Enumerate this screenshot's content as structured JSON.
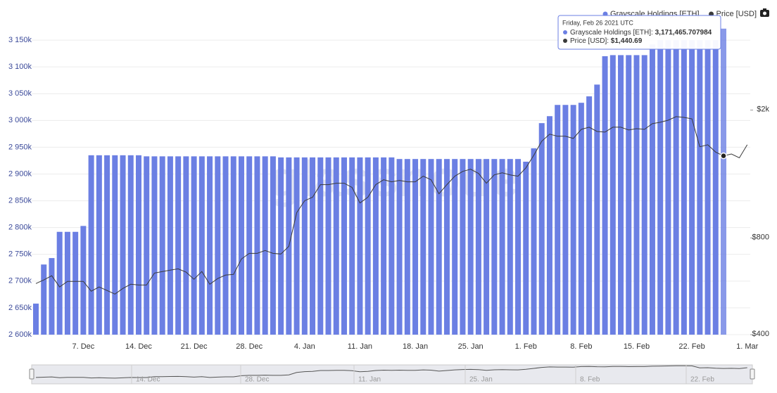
{
  "chart_data": {
    "type": "bar",
    "watermark": "glassnode",
    "categories": [
      null,
      null,
      null,
      null,
      null,
      null,
      "7. Dec",
      null,
      null,
      null,
      null,
      null,
      null,
      "14. Dec",
      null,
      null,
      null,
      null,
      null,
      null,
      "21. Dec",
      null,
      null,
      null,
      null,
      null,
      null,
      "28. Dec",
      null,
      null,
      null,
      null,
      null,
      null,
      "4. Jan",
      null,
      null,
      null,
      null,
      null,
      null,
      "11. Jan",
      null,
      null,
      null,
      null,
      null,
      null,
      "18. Jan",
      null,
      null,
      null,
      null,
      null,
      null,
      "25. Jan",
      null,
      null,
      null,
      null,
      null,
      null,
      "1. Feb",
      null,
      null,
      null,
      null,
      null,
      null,
      "8. Feb",
      null,
      null,
      null,
      null,
      null,
      null,
      "15. Feb",
      null,
      null,
      null,
      null,
      null,
      null,
      "22. Feb",
      null,
      null,
      null,
      null,
      null,
      null,
      "1. Mar"
    ],
    "series": [
      {
        "name": "Grayscale Holdings [ETH]",
        "type": "bar",
        "color": "#6b7fe3",
        "values": [
          2658000,
          2731000,
          2743000,
          2792000,
          2792000,
          2792000,
          2803000,
          2935000,
          2935000,
          2935000,
          2935000,
          2935000,
          2935000,
          2935000,
          2933000,
          2933000,
          2933000,
          2933000,
          2933000,
          2933000,
          2933000,
          2933000,
          2933000,
          2933000,
          2933000,
          2933000,
          2933000,
          2933000,
          2933000,
          2933000,
          2933000,
          2931000,
          2931000,
          2931000,
          2931000,
          2931000,
          2931000,
          2931000,
          2931000,
          2931000,
          2931000,
          2931000,
          2931000,
          2931000,
          2931000,
          2931000,
          2928000,
          2928000,
          2928000,
          2928000,
          2928000,
          2928000,
          2928000,
          2928000,
          2928000,
          2928000,
          2928000,
          2928000,
          2928000,
          2928000,
          2928000,
          2928000,
          2923000,
          2948000,
          2995000,
          3008000,
          3029000,
          3029000,
          3029000,
          3033000,
          3045000,
          3067000,
          3120000,
          3122000,
          3122000,
          3122000,
          3122000,
          3122000,
          3142000,
          3150000,
          3150000,
          3150000,
          3150000,
          3150000,
          3150000,
          3150000,
          3150000,
          3171465.707984,
          null,
          null,
          null
        ]
      },
      {
        "name": "Price [USD]",
        "type": "line",
        "axis": "y2",
        "color": "#3a3a3a",
        "values": [
          577,
          592,
          610,
          563,
          586,
          586,
          586,
          546,
          563,
          549,
          535,
          557,
          574,
          571,
          571,
          622,
          629,
          635,
          641,
          626,
          595,
          629,
          574,
          598,
          613,
          616,
          688,
          716,
          716,
          731,
          716,
          713,
          753,
          959,
          1044,
          1071,
          1172,
          1172,
          1184,
          1184,
          1149,
          1028,
          1071,
          1172,
          1214,
          1196,
          1208,
          1196,
          1196,
          1245,
          1214,
          1098,
          1172,
          1245,
          1289,
          1309,
          1270,
          1184,
          1257,
          1276,
          1257,
          1245,
          1322,
          1447,
          1600,
          1683,
          1658,
          1658,
          1632,
          1742,
          1769,
          1716,
          1708,
          1769,
          1769,
          1734,
          1751,
          1742,
          1814,
          1833,
          1860,
          1908,
          1898,
          1879,
          1537,
          1560,
          1480,
          1440.69,
          1460,
          1420,
          1560
        ]
      }
    ],
    "ylim": [
      2600000,
      3200000
    ],
    "yticks": [
      {
        "value": 2600000,
        "label": "2 600k"
      },
      {
        "value": 2650000,
        "label": "2 650k"
      },
      {
        "value": 2700000,
        "label": "2 700k"
      },
      {
        "value": 2750000,
        "label": "2 750k"
      },
      {
        "value": 2800000,
        "label": "2 800k"
      },
      {
        "value": 2850000,
        "label": "2 850k"
      },
      {
        "value": 2900000,
        "label": "2 900k"
      },
      {
        "value": 2950000,
        "label": "2 950k"
      },
      {
        "value": 3000000,
        "label": "3 000k"
      },
      {
        "value": 3050000,
        "label": "3 050k"
      },
      {
        "value": 3100000,
        "label": "3 100k"
      },
      {
        "value": 3150000,
        "label": "3 150k"
      }
    ],
    "y2lim": [
      400,
      4000
    ],
    "y2log": true,
    "y2ticks": [
      {
        "value": 400,
        "label": "$400"
      },
      {
        "value": 800,
        "label": "$800"
      },
      {
        "value": 2000,
        "label": "$2k"
      }
    ],
    "grid": true,
    "legend": "top-right",
    "highlight_index": 87,
    "tooltip": {
      "date": "Friday, Feb 26 2021 UTC",
      "rows": [
        {
          "label": "Grayscale Holdings [ETH]: ",
          "value": "3,171,465.707984"
        },
        {
          "label": "Price [USD]: ",
          "value": "$1,440.69"
        }
      ]
    },
    "navigator_labels": [
      "14. Dec",
      "28. Dec",
      "11. Jan",
      "25. Jan",
      "8. Feb",
      "22. Feb"
    ]
  }
}
